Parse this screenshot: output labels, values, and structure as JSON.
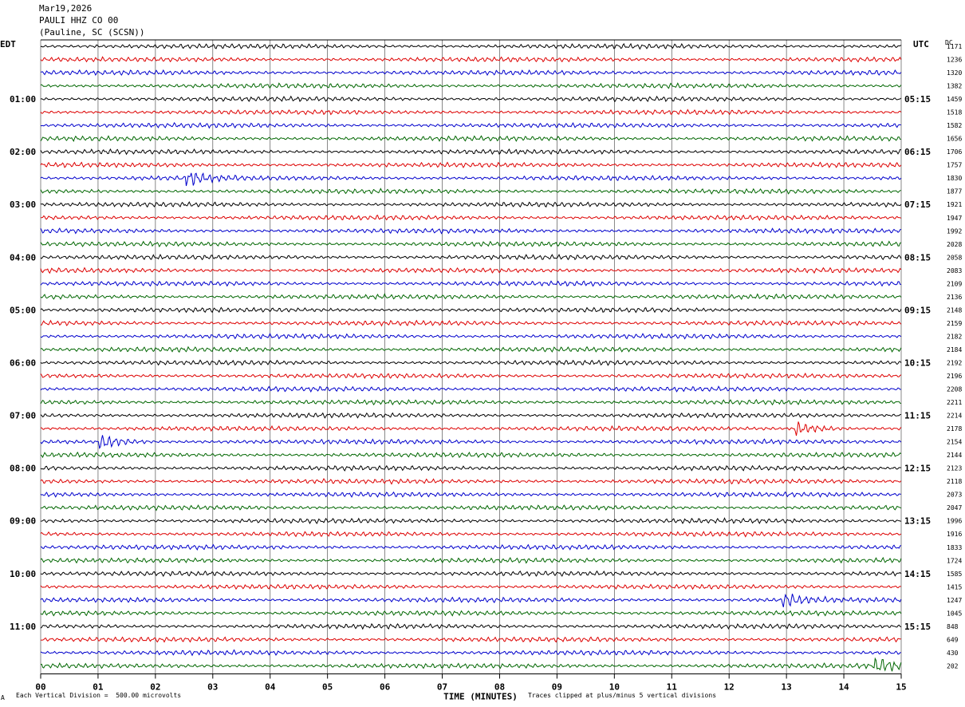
{
  "header": {
    "date": "Mar19,2026",
    "station": "PAULI HHZ CO 00",
    "location": "(Pauline, SC (SCSN))",
    "left_tz": "EDT",
    "right_tz": "UTC",
    "dc_label": "DC"
  },
  "footer": {
    "scale_note": "Each Vertical Division =  500.00 microvolts",
    "clip_note": "Traces clipped at plus/minus 5 vertical divisions",
    "corner_mark": "A"
  },
  "chart_data": {
    "type": "line",
    "title": "",
    "xlabel": "TIME (MINUTES)",
    "ylabel": "",
    "xlim": [
      0,
      15
    ],
    "x_tick_labels": [
      "00",
      "01",
      "02",
      "03",
      "04",
      "05",
      "06",
      "07",
      "08",
      "09",
      "10",
      "11",
      "12",
      "13",
      "14",
      "15"
    ],
    "grid": true,
    "trace_colors": [
      "#000000",
      "#dd0000",
      "#0000cc",
      "#006600"
    ],
    "left_time_labels": [
      "01:00",
      "02:00",
      "03:00",
      "04:00",
      "05:00",
      "06:00",
      "07:00",
      "08:00",
      "09:00",
      "10:00",
      "11:00"
    ],
    "right_time_labels": [
      "05:15",
      "06:15",
      "07:15",
      "08:15",
      "09:15",
      "10:15",
      "11:15",
      "12:15",
      "13:15",
      "14:15",
      "15:15"
    ],
    "dc_offsets": [
      1171,
      1236,
      1320,
      1382,
      1459,
      1518,
      1582,
      1656,
      1706,
      1757,
      1830,
      1877,
      1921,
      1947,
      1992,
      2028,
      2058,
      2083,
      2109,
      2136,
      2148,
      2159,
      2182,
      2184,
      2192,
      2196,
      2208,
      2211,
      2214,
      2178,
      2154,
      2144,
      2123,
      2118,
      2073,
      2047,
      1996,
      1916,
      1833,
      1724,
      1585,
      1415,
      1247,
      1045,
      848,
      649,
      430,
      202
    ],
    "events": [
      {
        "trace": 10,
        "minute": 2.6,
        "description": "burst"
      },
      {
        "trace": 29,
        "minute": 13.2,
        "description": "burst"
      },
      {
        "trace": 30,
        "minute": 1.1,
        "description": "burst"
      },
      {
        "trace": 42,
        "minute": 13.0,
        "description": "burst"
      },
      {
        "trace": 47,
        "minute": 14.6,
        "description": "burst"
      }
    ]
  }
}
